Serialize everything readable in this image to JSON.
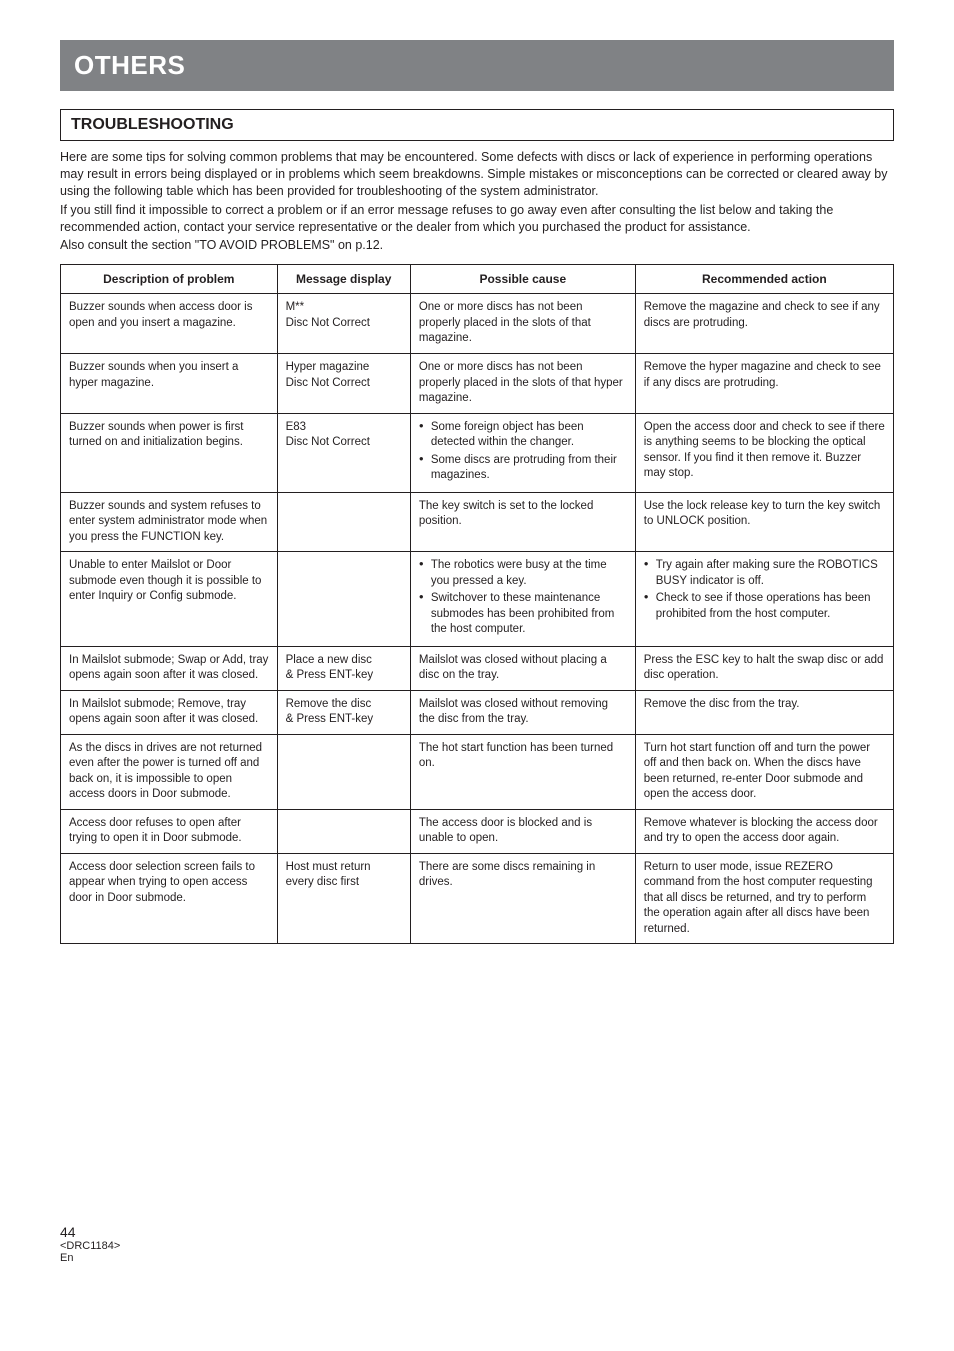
{
  "banner": "OTHERS",
  "section_title": "TROUBLESHOOTING",
  "intro": {
    "p1": "Here are some tips for solving common problems that may be encountered. Some defects with discs or lack of experience in performing operations may result in errors being displayed or in problems which seem breakdowns. Simple mistakes or misconceptions can be corrected or cleared away by using the following table which has been provided for troubleshooting of the system administrator.",
    "p2": "If you still find it impossible to correct a problem or if an error message refuses to go away even after consulting the list below and taking the recommended action, contact your service representative or the dealer from which you purchased the product for assistance.",
    "p3": "Also consult the section \"TO AVOID PROBLEMS\" on p.12."
  },
  "table": {
    "headers": {
      "c1": "Description of problem",
      "c2": "Message display",
      "c3": "Possible cause",
      "c4": "Recommended action"
    },
    "rows": [
      {
        "desc": "Buzzer sounds when access door is open and you insert a magazine.",
        "msg": "M**\nDisc Not Correct",
        "cause": "One or more discs has not been properly placed in the slots of that magazine.",
        "action": "Remove the magazine and check to see if any discs are protruding."
      },
      {
        "desc": "Buzzer sounds when you insert a hyper magazine.",
        "msg": "Hyper magazine\nDisc Not Correct",
        "cause": "One or more discs has not been properly placed in the slots of that hyper magazine.",
        "action": "Remove the hyper magazine and check to see if any discs are protruding."
      },
      {
        "desc": "Buzzer sounds when power is first turned on and initialization begins.",
        "msg": "E83\nDisc Not Correct",
        "cause_bullets": [
          "Some foreign object has been detected within the changer.",
          "Some discs are protruding from their magazines."
        ],
        "action": "Open the access door and check to see if there is anything seems to be blocking the optical sensor. If you find it then remove it. Buzzer may stop."
      },
      {
        "desc": "Buzzer sounds and system refuses to enter system administrator mode when you press the FUNCTION key.",
        "msg": "",
        "cause": "The key switch is set to the locked position.",
        "action": "Use the lock release key to turn the key switch to UNLOCK position."
      },
      {
        "desc": "Unable to enter Mailslot or Door submode even though it is possible to enter Inquiry or Config submode.",
        "msg": "",
        "cause_bullets": [
          "The robotics were busy at the time you pressed a key.",
          "Switchover to these maintenance submodes has been prohibited from the host computer."
        ],
        "action_bullets": [
          "Try again after making sure the ROBOTICS BUSY indicator is off.",
          "Check to see if those operations has been prohibited from the host computer."
        ]
      },
      {
        "desc": "In Mailslot submode; Swap or Add, tray opens again soon after it was closed.",
        "msg": "Place a new disc\n& Press ENT-key",
        "cause": "Mailslot was closed without placing a disc on the tray.",
        "action": "Press the ESC key to halt the swap disc or add disc operation."
      },
      {
        "desc": "In Mailslot submode; Remove, tray opens again soon after it was closed.",
        "msg": "Remove the disc\n& Press ENT-key",
        "cause": "Mailslot was closed without removing the disc from the tray.",
        "action": "Remove the disc from the tray."
      },
      {
        "desc": "As the discs in drives are not returned even after the power is turned off and back on, it is impossible to open access doors in Door submode.",
        "msg": "",
        "cause": "The hot start function has been turned on.",
        "action": "Turn hot start function off and turn the power off and then back on. When the discs have been returned, re-enter Door submode and open the access door."
      },
      {
        "desc": "Access door refuses to open after trying to open it in Door submode.",
        "msg": "",
        "cause": "The access door is blocked and is unable to open.",
        "action": "Remove whatever is blocking the access door and try to open the access door again."
      },
      {
        "desc": "Access door selection screen fails to appear when trying to open access door in Door submode.",
        "msg": "Host must return\nevery disc first",
        "cause": "There are some discs remaining in drives.",
        "action": "Return to user mode, issue REZERO command from the host computer requesting that all discs be returned, and try to perform the operation again after all discs have been returned."
      }
    ]
  },
  "footer": {
    "page": "44",
    "code": "<DRC1184>",
    "lang": "En"
  }
}
